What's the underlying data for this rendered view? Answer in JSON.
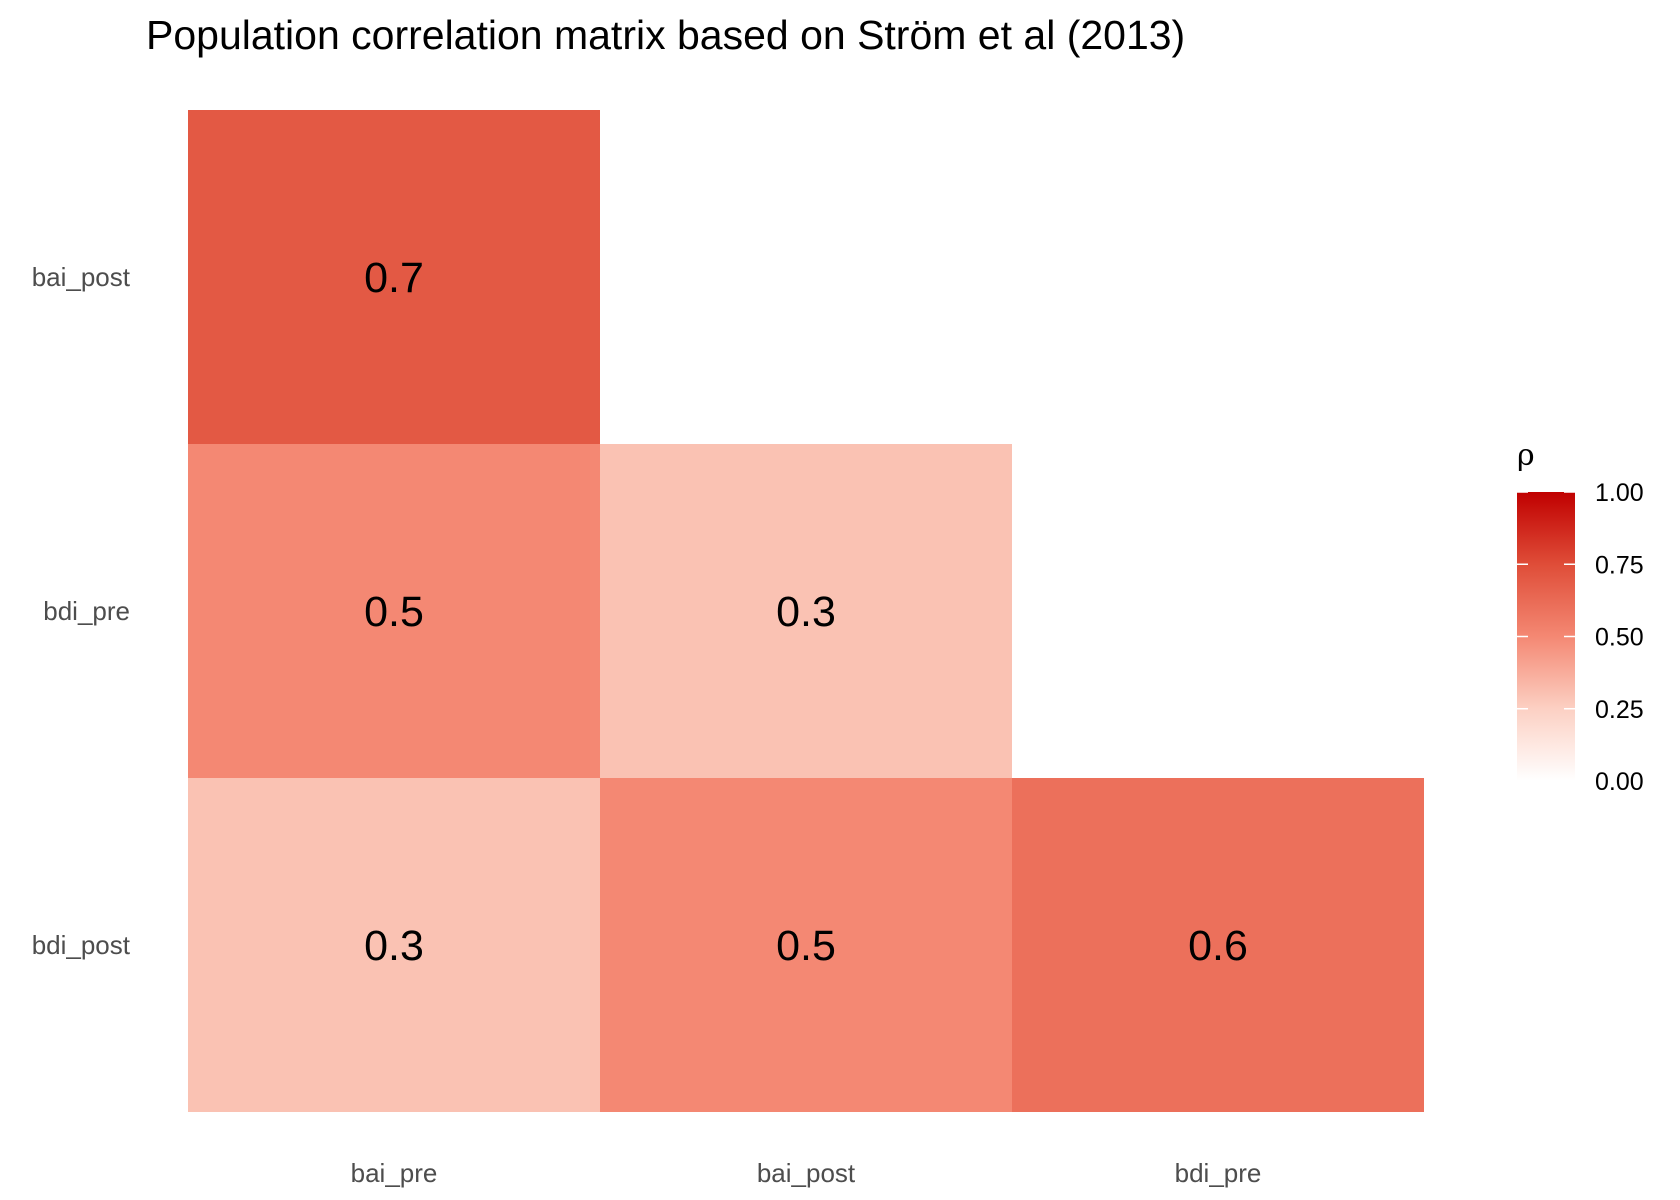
{
  "chart_data": {
    "type": "heatmap",
    "title": "Population correlation matrix based on Ström et al (2013)",
    "x_categories": [
      "bai_pre",
      "bai_post",
      "bdi_pre"
    ],
    "y_categories": [
      "bai_post",
      "bdi_pre",
      "bdi_post"
    ],
    "cells": [
      {
        "x": "bai_pre",
        "y": "bai_post",
        "value": 0.7,
        "label": "0.7"
      },
      {
        "x": "bai_pre",
        "y": "bdi_pre",
        "value": 0.5,
        "label": "0.5"
      },
      {
        "x": "bai_post",
        "y": "bdi_pre",
        "value": 0.3,
        "label": "0.3"
      },
      {
        "x": "bai_pre",
        "y": "bdi_post",
        "value": 0.3,
        "label": "0.3"
      },
      {
        "x": "bai_post",
        "y": "bdi_post",
        "value": 0.5,
        "label": "0.5"
      },
      {
        "x": "bdi_pre",
        "y": "bdi_post",
        "value": 0.6,
        "label": "0.6"
      }
    ],
    "legend": {
      "title": "ρ",
      "placement": "right",
      "range": [
        0,
        1
      ],
      "ticks": [
        {
          "value": 1.0,
          "label": "1.00"
        },
        {
          "value": 0.75,
          "label": "0.75"
        },
        {
          "value": 0.5,
          "label": "0.50"
        },
        {
          "value": 0.25,
          "label": "0.25"
        },
        {
          "value": 0.0,
          "label": "0.00"
        }
      ]
    },
    "colors": {
      "low": "#ffffff",
      "high": "#c00000"
    },
    "grid": false
  }
}
